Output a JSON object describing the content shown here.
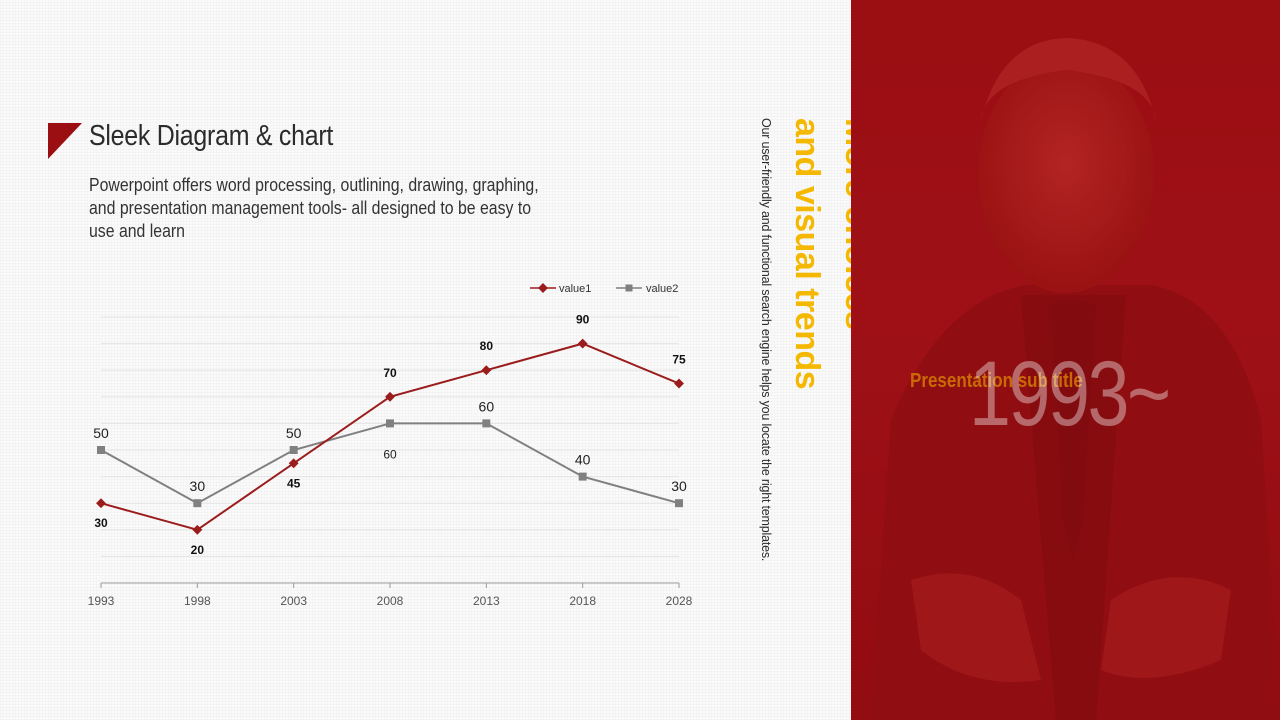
{
  "header": {
    "title": "Sleek Diagram & chart",
    "description": "Powerpoint offers word processing, outlining, drawing, graphing, and presentation management tools- all designed to be easy to use and learn"
  },
  "side": {
    "headline_line1": "More choices",
    "headline_line2": "and visual trends",
    "body": "Our user-friendly and functional search engine helps you locate the right templates."
  },
  "panel": {
    "year": "1993~",
    "subtitle": "Presentation sub title"
  },
  "colors": {
    "accent": "#9b0e12",
    "series1": "#9b1c1c",
    "series2": "#808080",
    "headline": "#f5b800"
  },
  "chart_data": {
    "type": "line",
    "title": "",
    "xlabel": "",
    "ylabel": "",
    "categories": [
      "1993",
      "1998",
      "2003",
      "2008",
      "2013",
      "2018",
      "2028"
    ],
    "ylim": [
      0,
      100
    ],
    "grid": true,
    "legend": "top-right",
    "series": [
      {
        "name": "value1",
        "values": [
          30,
          20,
          45,
          70,
          80,
          90,
          75
        ],
        "labels": [
          "30",
          "20",
          "45",
          "70",
          "80",
          "90",
          "75"
        ]
      },
      {
        "name": "value2",
        "values": [
          50,
          30,
          50,
          60,
          60,
          40,
          30
        ],
        "labels": [
          "50",
          "30",
          "50",
          "60",
          "60",
          "40",
          "30"
        ]
      }
    ]
  }
}
